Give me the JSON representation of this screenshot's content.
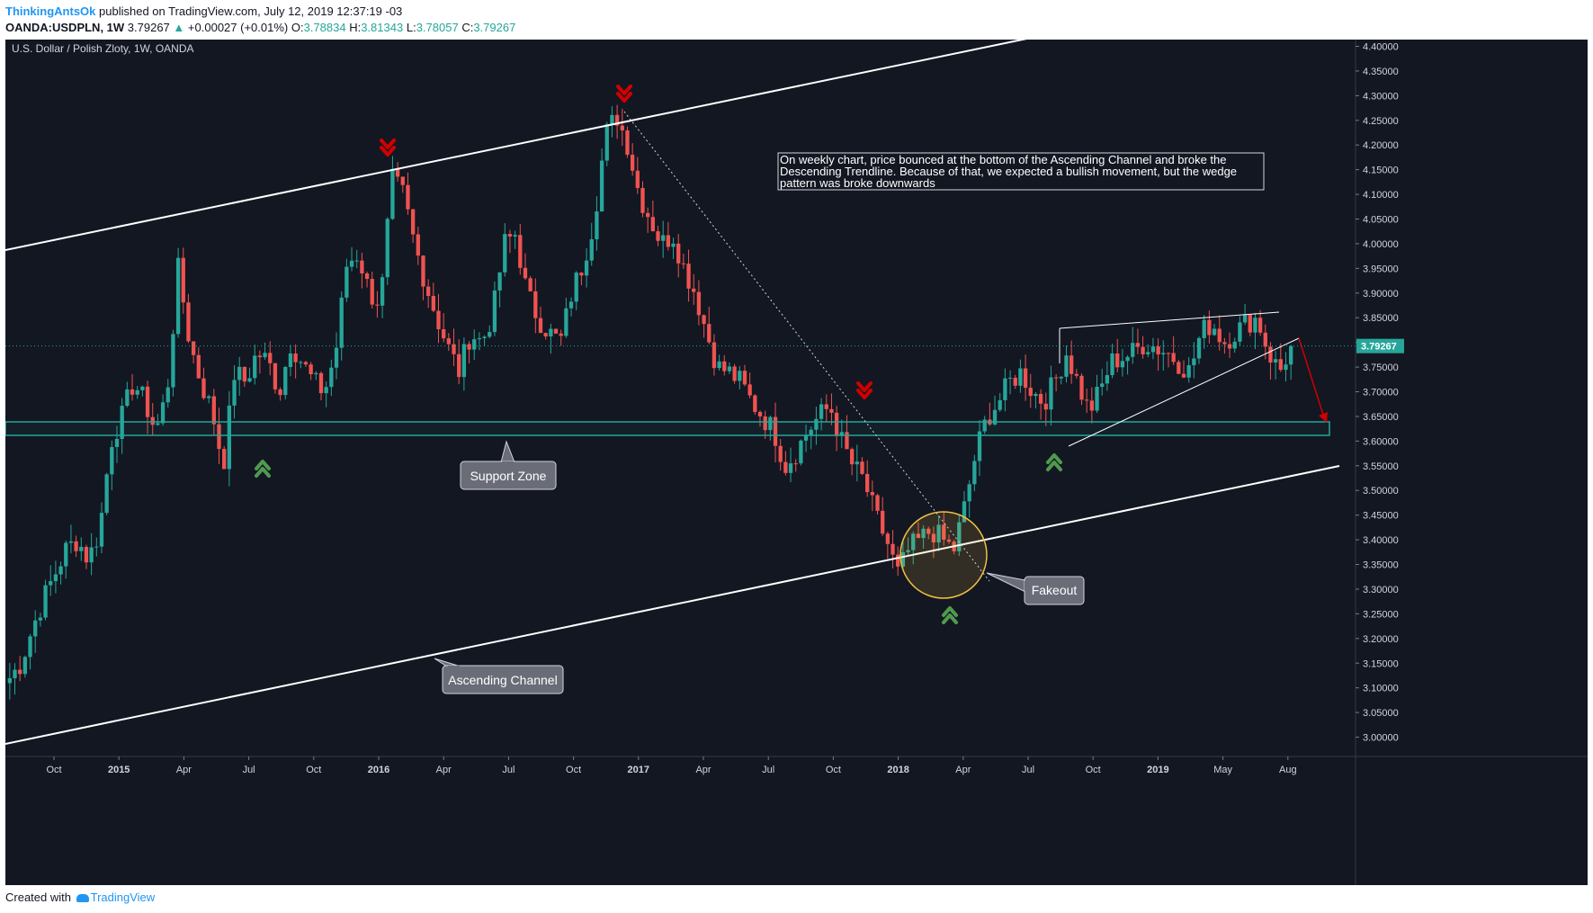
{
  "header": {
    "author": "ThinkingAntsOk",
    "published_text": "published on TradingView.com, July 12, 2019 12:37:19 -03",
    "symbol": "OANDA:USDPLN, 1W",
    "last": "3.79267",
    "change_arrow": "▲",
    "change": "+0.00027 (+0.01%)",
    "o_label": "O:",
    "o": "3.78834",
    "h_label": "H:",
    "h": "3.81343",
    "l_label": "L:",
    "l": "3.78057",
    "c_label": "C:",
    "c": "3.79267"
  },
  "footer": {
    "created_with": "Created with",
    "brand": "TradingView"
  },
  "colors": {
    "background": "#131722",
    "bull": "#26a69a",
    "bear": "#ef5350",
    "down_arrow": "#d00000",
    "up_arrow": "#4f9a4f",
    "zone": "#26a69a",
    "circle": "#f0c040",
    "white_line": "#ffffff"
  },
  "chart_data": {
    "type": "candlestick",
    "title": "U.S. Dollar / Polish Zloty, 1W, OANDA",
    "interval": "1W",
    "ylim": [
      2.97,
      4.41
    ],
    "y_ticks": [
      "4.40000",
      "4.35000",
      "4.30000",
      "4.25000",
      "4.20000",
      "4.15000",
      "4.10000",
      "4.05000",
      "4.00000",
      "3.95000",
      "3.90000",
      "3.85000",
      "3.80000",
      "3.75000",
      "3.70000",
      "3.65000",
      "3.60000",
      "3.55000",
      "3.50000",
      "3.45000",
      "3.40000",
      "3.35000",
      "3.30000",
      "3.25000",
      "3.20000",
      "3.15000",
      "3.10000",
      "3.05000",
      "3.00000"
    ],
    "x_ticks": [
      {
        "label": "Oct",
        "major": false
      },
      {
        "label": "2015",
        "major": true
      },
      {
        "label": "Apr",
        "major": false
      },
      {
        "label": "Jul",
        "major": false
      },
      {
        "label": "Oct",
        "major": false
      },
      {
        "label": "2016",
        "major": true
      },
      {
        "label": "Apr",
        "major": false
      },
      {
        "label": "Jul",
        "major": false
      },
      {
        "label": "Oct",
        "major": false
      },
      {
        "label": "2017",
        "major": true
      },
      {
        "label": "Apr",
        "major": false
      },
      {
        "label": "Jul",
        "major": false
      },
      {
        "label": "Oct",
        "major": false
      },
      {
        "label": "2018",
        "major": true
      },
      {
        "label": "Apr",
        "major": false
      },
      {
        "label": "Jul",
        "major": false
      },
      {
        "label": "Oct",
        "major": false
      },
      {
        "label": "2019",
        "major": true
      },
      {
        "label": "May",
        "major": false
      },
      {
        "label": "Aug",
        "major": false
      }
    ],
    "last_price": 3.79267,
    "last_price_label": "3.79267",
    "price_path": [
      3.12,
      3.15,
      3.22,
      3.28,
      3.33,
      3.38,
      3.4,
      3.36,
      3.42,
      3.6,
      3.65,
      3.72,
      3.68,
      3.62,
      3.7,
      3.95,
      3.8,
      3.72,
      3.66,
      3.55,
      3.74,
      3.72,
      3.78,
      3.76,
      3.7,
      3.8,
      3.76,
      3.72,
      3.7,
      3.78,
      3.96,
      3.98,
      3.9,
      3.88,
      4.13,
      4.1,
      4.0,
      3.92,
      3.85,
      3.79,
      3.74,
      3.82,
      3.8,
      3.86,
      4.0,
      4.02,
      3.9,
      3.85,
      3.82,
      3.8,
      3.9,
      3.96,
      4.05,
      4.22,
      4.26,
      4.2,
      4.1,
      4.05,
      4.0,
      4.02,
      3.95,
      3.9,
      3.82,
      3.75,
      3.74,
      3.72,
      3.68,
      3.65,
      3.62,
      3.55,
      3.58,
      3.62,
      3.65,
      3.67,
      3.6,
      3.55,
      3.52,
      3.45,
      3.4,
      3.33,
      3.38,
      3.4,
      3.42,
      3.4,
      3.38,
      3.47,
      3.58,
      3.65,
      3.68,
      3.72,
      3.74,
      3.7,
      3.68,
      3.72,
      3.78,
      3.72,
      3.66,
      3.7,
      3.76,
      3.77,
      3.78,
      3.8,
      3.79,
      3.78,
      3.76,
      3.74,
      3.82,
      3.84,
      3.8,
      3.82,
      3.84,
      3.85,
      3.78,
      3.74,
      3.79267
    ],
    "annotations": {
      "note": "On weekly chart, price bounced at the bottom of the Ascending Channel and broke the Descending Trendline. Because of that, we expected a bullish movement, but the wedge pattern was broke downwards",
      "support_zone": "Support Zone",
      "ascending_channel": "Ascending Channel",
      "fakeout": "Fakeout"
    }
  }
}
